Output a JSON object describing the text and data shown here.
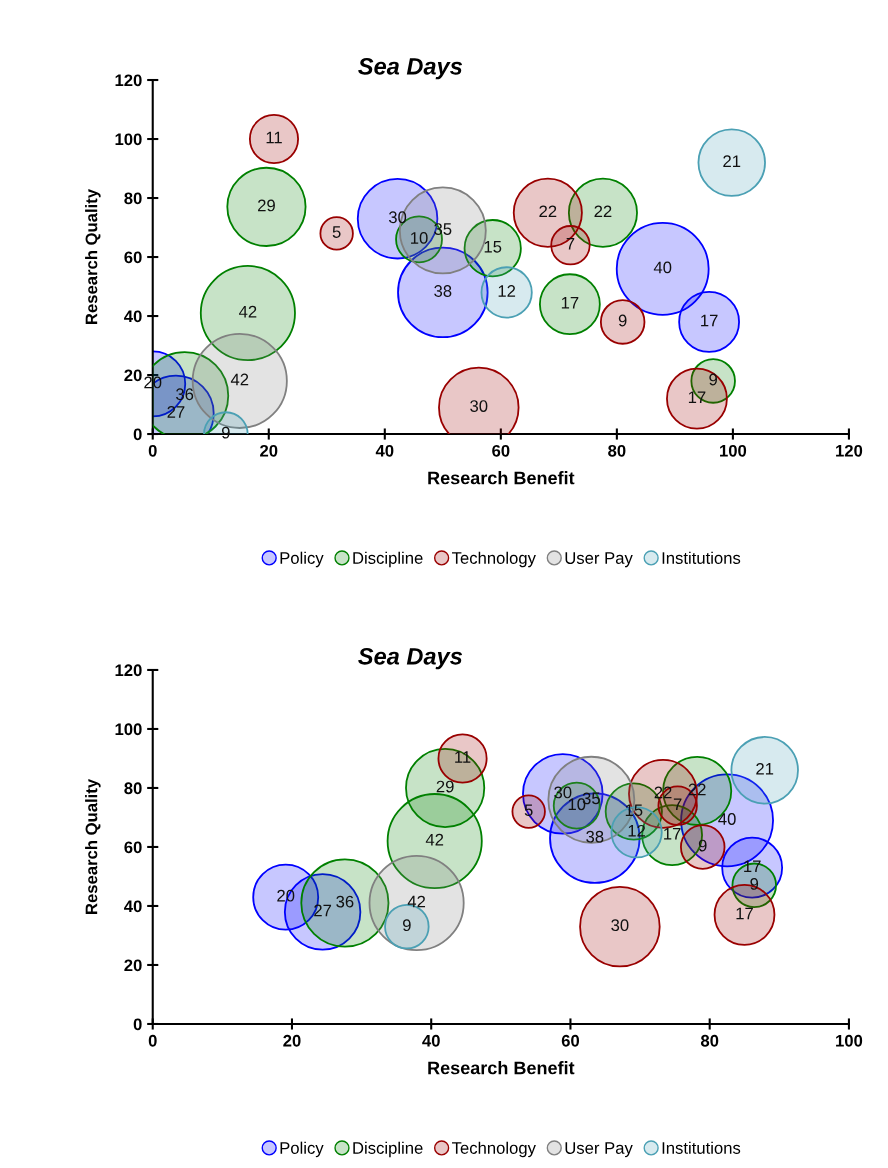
{
  "chart_data": [
    {
      "type": "bubble",
      "title": "Sea Days",
      "xlabel": "Research Benefit",
      "ylabel": "Research Quality",
      "xlim": [
        0,
        120
      ],
      "xticks": [
        0,
        20,
        40,
        60,
        80,
        100,
        120
      ],
      "ylim": [
        0,
        120
      ],
      "yticks": [
        0,
        20,
        40,
        60,
        80,
        100,
        120
      ],
      "legend": "bottom",
      "grid": false,
      "marker": "circle",
      "series": [
        {
          "name": "Policy",
          "color": "#0000ff",
          "x": [
            0,
            4,
            42.2,
            50,
            87.9,
            95.9
          ],
          "values": [
            17,
            7,
            73,
            48,
            56,
            38
          ],
          "sizes": [
            20,
            27,
            30,
            38,
            40,
            17
          ],
          "value_labels": [
            "20",
            "27",
            "30",
            "38",
            "40",
            "17"
          ]
        },
        {
          "name": "Discipline",
          "color": "#008000",
          "x": [
            5.5,
            16.4,
            19.6,
            45.9,
            58.6,
            71.9,
            77.6,
            96.6
          ],
          "values": [
            13,
            41,
            77,
            66,
            63,
            44,
            75,
            18
          ],
          "sizes": [
            36,
            42,
            29,
            10,
            15,
            17,
            22,
            9
          ],
          "value_labels": [
            "36",
            "42",
            "29",
            "10",
            "15",
            "17",
            "22",
            "9"
          ]
        },
        {
          "name": "Technology",
          "color": "#990000",
          "x": [
            20.9,
            31.7,
            56.2,
            68.1,
            72,
            81,
            93.8
          ],
          "values": [
            100,
            68,
            9,
            75,
            64,
            38,
            12
          ],
          "sizes": [
            11,
            5,
            30,
            22,
            7,
            9,
            17
          ],
          "value_labels": [
            "11",
            "5",
            "30",
            "22",
            "7",
            "9",
            "17"
          ]
        },
        {
          "name": "User Pay",
          "color": "#808080",
          "x": [
            15,
            50
          ],
          "values": [
            18,
            69
          ],
          "sizes": [
            42,
            35
          ],
          "value_labels": [
            "42",
            "35"
          ]
        },
        {
          "name": "Institutions",
          "color": "#4ba0b4",
          "x": [
            12.6,
            61,
            99.8
          ],
          "values": [
            0,
            48,
            92
          ],
          "sizes": [
            9,
            12,
            21
          ],
          "value_labels": [
            "9",
            "12",
            "21"
          ]
        }
      ]
    },
    {
      "type": "bubble",
      "title": "Sea Days",
      "xlabel": "Research Benefit",
      "ylabel": "Research Quality",
      "xlim": [
        0,
        100
      ],
      "xticks": [
        0,
        20,
        40,
        60,
        80,
        100
      ],
      "ylim": [
        0,
        120
      ],
      "yticks": [
        0,
        20,
        40,
        60,
        80,
        100,
        120
      ],
      "legend": "bottom",
      "grid": false,
      "marker": "circle",
      "series": [
        {
          "name": "Policy",
          "color": "#0000ff",
          "x": [
            19.1,
            24.4,
            58.9,
            63.5,
            82.5,
            86.1
          ],
          "values": [
            43,
            38,
            78,
            63,
            69,
            53
          ],
          "sizes": [
            20,
            27,
            30,
            38,
            40,
            17
          ],
          "value_labels": [
            "20",
            "27",
            "30",
            "38",
            "40",
            "17"
          ]
        },
        {
          "name": "Discipline",
          "color": "#008000",
          "x": [
            27.6,
            40.5,
            42,
            60.9,
            69.1,
            74.6,
            78.2,
            86.4
          ],
          "values": [
            41,
            62,
            80,
            74,
            72,
            64,
            79,
            47
          ],
          "sizes": [
            36,
            42,
            29,
            10,
            15,
            17,
            22,
            9
          ],
          "value_labels": [
            "36",
            "42",
            "29",
            "10",
            "15",
            "17",
            "22",
            "9"
          ]
        },
        {
          "name": "Technology",
          "color": "#990000",
          "x": [
            44.5,
            54,
            67.1,
            73.3,
            75.4,
            79,
            85
          ],
          "values": [
            90,
            72,
            33,
            78,
            74,
            60,
            37
          ],
          "sizes": [
            11,
            5,
            30,
            22,
            7,
            9,
            17
          ],
          "value_labels": [
            "11",
            "5",
            "30",
            "22",
            "7",
            "9",
            "17"
          ]
        },
        {
          "name": "User Pay",
          "color": "#808080",
          "x": [
            37.9,
            63
          ],
          "values": [
            41,
            76
          ],
          "sizes": [
            42,
            35
          ],
          "value_labels": [
            "42",
            "35"
          ]
        },
        {
          "name": "Institutions",
          "color": "#4ba0b4",
          "x": [
            36.5,
            69.5,
            87.9
          ],
          "values": [
            33,
            65,
            86
          ],
          "sizes": [
            9,
            12,
            21
          ],
          "value_labels": [
            "9",
            "12",
            "21"
          ]
        }
      ]
    }
  ]
}
